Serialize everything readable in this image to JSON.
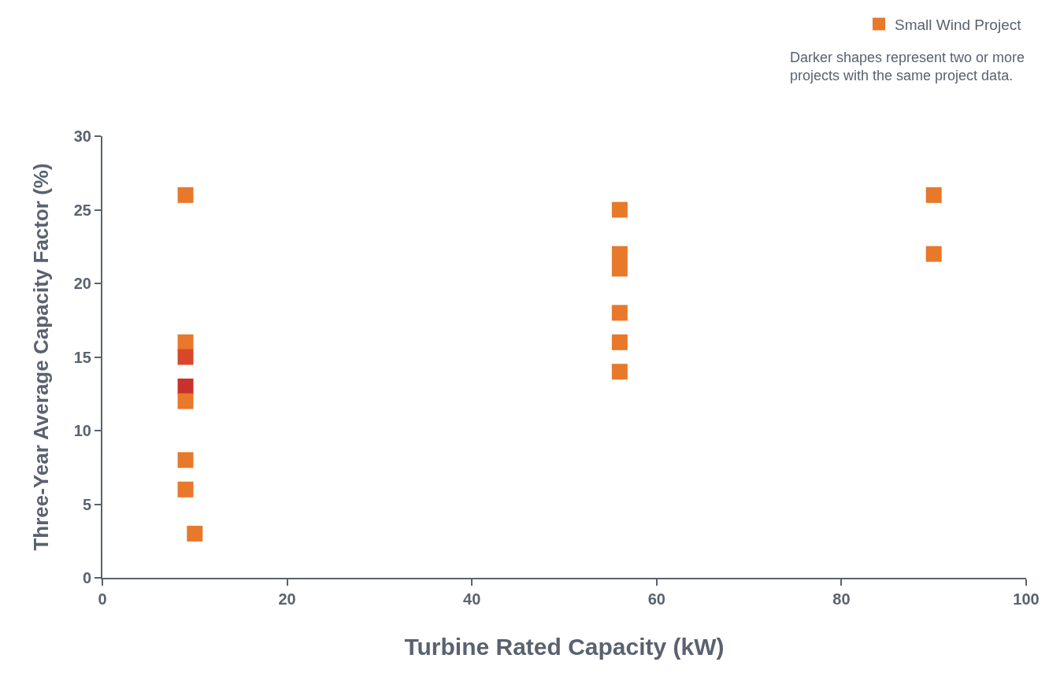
{
  "chart_data": {
    "type": "scatter",
    "xlabel": "Turbine Rated Capacity (kW)",
    "ylabel": "Three-Year Average Capacity Factor (%)",
    "xlim": [
      0,
      100
    ],
    "xticks": [
      0,
      20,
      40,
      60,
      80,
      100
    ],
    "ylim": [
      0,
      30
    ],
    "yticks": [
      0,
      5,
      10,
      15,
      20,
      25,
      30
    ],
    "marker": "square",
    "legend": "top right",
    "annotations": [
      "Darker shapes represent two or more projects with the same project data."
    ],
    "series": [
      {
        "name": "Small Wind Project",
        "color": "#e8782a",
        "x": [
          9,
          9,
          9,
          9,
          9,
          9,
          9,
          10,
          56,
          56,
          56,
          56,
          56,
          56,
          90,
          90
        ],
        "values": [
          26,
          16,
          15,
          13,
          12,
          8,
          6,
          3,
          25,
          22,
          21,
          18,
          16,
          14,
          26,
          22
        ],
        "colors": [
          null,
          null,
          "#d9472b",
          "#c9312c",
          null,
          null,
          null,
          null,
          null,
          null,
          null,
          null,
          null,
          null,
          null,
          null
        ]
      }
    ]
  }
}
